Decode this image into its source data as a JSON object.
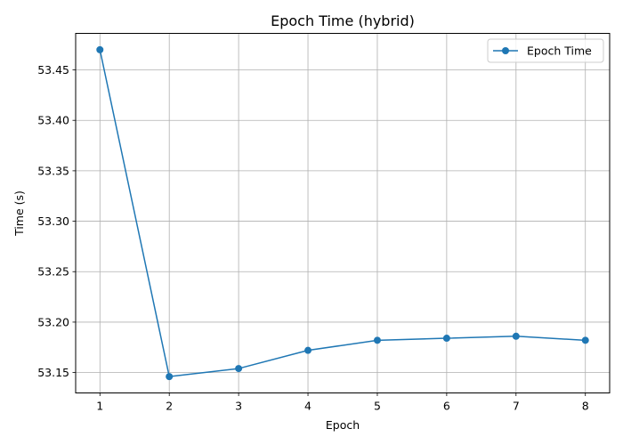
{
  "chart_data": {
    "type": "line",
    "title": "Epoch Time (hybrid)",
    "xlabel": "Epoch",
    "ylabel": "Time (s)",
    "x": [
      1,
      2,
      3,
      4,
      5,
      6,
      7,
      8
    ],
    "series": [
      {
        "name": "Epoch Time",
        "values": [
          53.47,
          53.146,
          53.154,
          53.172,
          53.182,
          53.184,
          53.186,
          53.182
        ],
        "color": "#1f77b4",
        "marker": "circle"
      }
    ],
    "xticks": [
      "1",
      "2",
      "3",
      "4",
      "5",
      "6",
      "7",
      "8"
    ],
    "xtick_values": [
      1,
      2,
      3,
      4,
      5,
      6,
      7,
      8
    ],
    "yticks": [
      "53.15",
      "53.20",
      "53.25",
      "53.30",
      "53.35",
      "53.40",
      "53.45"
    ],
    "ytick_values": [
      53.15,
      53.2,
      53.25,
      53.3,
      53.35,
      53.4,
      53.45
    ],
    "xlim": [
      0.65,
      8.35
    ],
    "ylim": [
      53.1298,
      53.4862
    ],
    "grid": true,
    "legend_position": "upper right"
  }
}
